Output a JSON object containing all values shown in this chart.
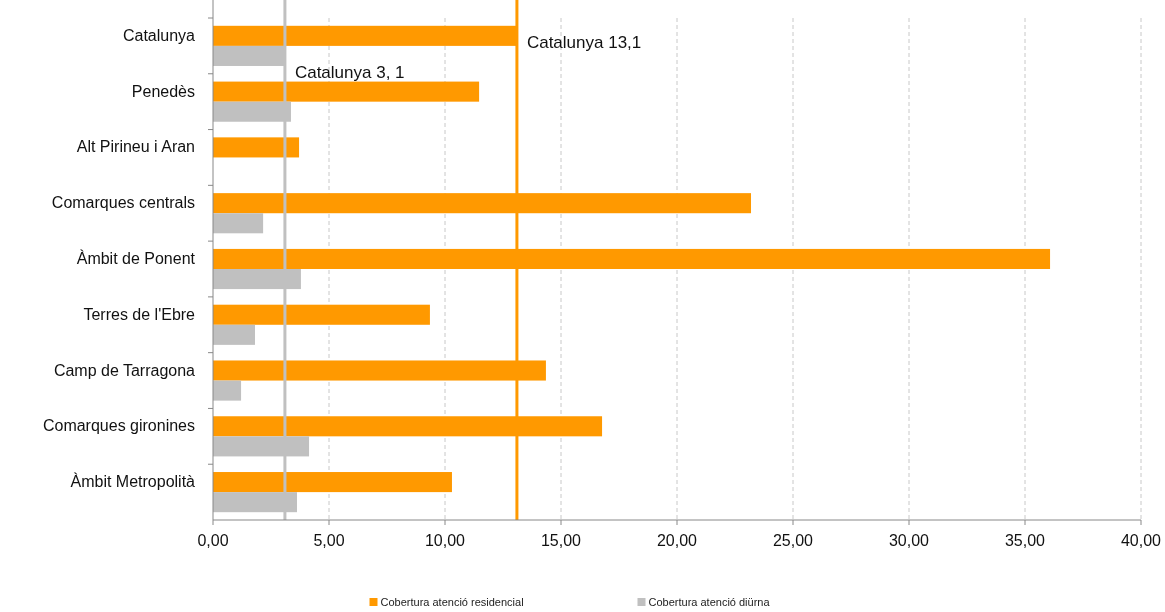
{
  "chart_data": {
    "type": "bar",
    "orientation": "horizontal",
    "categories": [
      "Catalunya",
      "Penedès",
      "Alt Pirineu i Aran",
      "Comarques centrals",
      "Àmbit de Ponent",
      "Terres de l'Ebre",
      "Camp de Tarragona",
      "Comarques gironines",
      "Àmbit Metropolità"
    ],
    "series": [
      {
        "name": "Cobertura atenció residencial",
        "color": "#ff9900",
        "values": [
          13.1,
          11.47,
          3.71,
          23.19,
          36.08,
          9.35,
          14.35,
          16.77,
          10.3
        ]
      },
      {
        "name": "Cobertura atenció diürna",
        "color": "#c0c0c0",
        "values": [
          3.1,
          3.36,
          null,
          2.16,
          3.79,
          1.81,
          1.21,
          4.14,
          3.62
        ]
      }
    ],
    "xlim": [
      0,
      40
    ],
    "xticks": [
      {
        "value": 0,
        "label": "0,00"
      },
      {
        "value": 5,
        "label": "5,00"
      },
      {
        "value": 10,
        "label": "10,00"
      },
      {
        "value": 15,
        "label": "15,00"
      },
      {
        "value": 20,
        "label": "20,00"
      },
      {
        "value": 25,
        "label": "25,00"
      },
      {
        "value": 30,
        "label": "30,00"
      },
      {
        "value": 35,
        "label": "35,00"
      },
      {
        "value": 40,
        "label": "40,00"
      }
    ],
    "grid": "x",
    "legend": "bottom",
    "ref_lines": [
      {
        "axis": "x",
        "value": 13.1,
        "label": "Catalunya 13,1",
        "color": "#ff9900"
      },
      {
        "axis": "x",
        "value": 3.1,
        "label": "Catalunya 3, 1",
        "color": "#c0c0c0"
      }
    ]
  }
}
